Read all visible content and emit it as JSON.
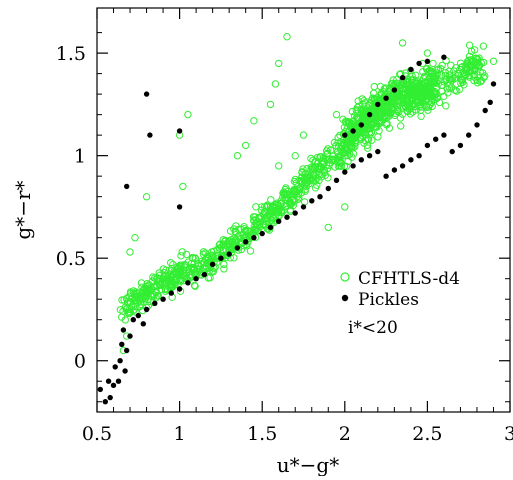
{
  "chart_data": {
    "type": "scatter",
    "xlabel": "u*−g*",
    "ylabel": "g*−r*",
    "xlim": [
      0.5,
      3.0
    ],
    "ylim": [
      -0.25,
      1.72
    ],
    "x_ticks": [
      0.5,
      1,
      1.5,
      2,
      2.5,
      3
    ],
    "x_tick_labels": [
      "0.5",
      "1",
      "1.5",
      "2",
      "2.5",
      "3"
    ],
    "y_ticks": [
      0,
      0.5,
      1,
      1.5
    ],
    "y_tick_labels": [
      "0",
      "0.5",
      "1",
      "1.5"
    ],
    "annotation": "i*<20",
    "legend_position": "right-center",
    "series": [
      {
        "name": "CFHTLS-d4",
        "marker": "open-circle",
        "color": "#33ee33",
        "trend_points": [
          [
            0.66,
            0.24
          ],
          [
            0.75,
            0.3
          ],
          [
            0.9,
            0.38
          ],
          [
            1.0,
            0.43
          ],
          [
            1.1,
            0.45
          ],
          [
            1.2,
            0.48
          ],
          [
            1.3,
            0.55
          ],
          [
            1.4,
            0.62
          ],
          [
            1.5,
            0.68
          ],
          [
            1.6,
            0.75
          ],
          [
            1.7,
            0.82
          ],
          [
            1.8,
            0.9
          ],
          [
            1.9,
            0.98
          ],
          [
            2.0,
            1.06
          ],
          [
            2.1,
            1.15
          ],
          [
            2.2,
            1.22
          ],
          [
            2.3,
            1.27
          ],
          [
            2.4,
            1.3
          ],
          [
            2.5,
            1.33
          ],
          [
            2.6,
            1.36
          ],
          [
            2.7,
            1.4
          ],
          [
            2.8,
            1.43
          ],
          [
            2.85,
            1.44
          ]
        ],
        "outliers": [
          [
            0.66,
            0.05
          ],
          [
            0.68,
            0.12
          ],
          [
            0.7,
            0.53
          ],
          [
            0.73,
            0.6
          ],
          [
            0.8,
            0.8
          ],
          [
            1.0,
            1.1
          ],
          [
            1.02,
            0.85
          ],
          [
            1.05,
            1.2
          ],
          [
            1.35,
            1.0
          ],
          [
            1.4,
            1.05
          ],
          [
            1.45,
            1.17
          ],
          [
            1.55,
            1.25
          ],
          [
            1.58,
            1.35
          ],
          [
            1.6,
            1.45
          ],
          [
            1.65,
            1.58
          ],
          [
            1.6,
            0.95
          ],
          [
            1.7,
            1.0
          ],
          [
            1.75,
            1.1
          ],
          [
            1.95,
            1.2
          ],
          [
            1.9,
            0.65
          ],
          [
            2.0,
            0.75
          ],
          [
            2.35,
            1.55
          ],
          [
            2.5,
            1.5
          ],
          [
            2.8,
            1.47
          ],
          [
            2.9,
            1.46
          ]
        ]
      },
      {
        "name": "Pickles",
        "marker": "filled-circle",
        "color": "#000000",
        "points": [
          [
            0.52,
            -0.14
          ],
          [
            0.55,
            -0.2
          ],
          [
            0.57,
            -0.1
          ],
          [
            0.58,
            -0.18
          ],
          [
            0.6,
            -0.12
          ],
          [
            0.61,
            -0.03
          ],
          [
            0.63,
            -0.1
          ],
          [
            0.64,
            0.0
          ],
          [
            0.65,
            0.08
          ],
          [
            0.66,
            0.15
          ],
          [
            0.67,
            -0.05
          ],
          [
            0.68,
            0.05
          ],
          [
            0.7,
            0.12
          ],
          [
            0.72,
            0.2
          ],
          [
            0.75,
            0.22
          ],
          [
            0.78,
            0.18
          ],
          [
            0.8,
            0.25
          ],
          [
            0.85,
            0.28
          ],
          [
            0.9,
            0.3
          ],
          [
            0.95,
            0.33
          ],
          [
            1.0,
            0.35
          ],
          [
            1.05,
            0.38
          ],
          [
            1.1,
            0.4
          ],
          [
            1.15,
            0.42
          ],
          [
            1.2,
            0.47
          ],
          [
            1.25,
            0.5
          ],
          [
            1.3,
            0.52
          ],
          [
            1.35,
            0.55
          ],
          [
            1.4,
            0.58
          ],
          [
            1.45,
            0.6
          ],
          [
            1.5,
            0.62
          ],
          [
            1.55,
            0.65
          ],
          [
            1.6,
            0.68
          ],
          [
            1.65,
            0.7
          ],
          [
            1.7,
            0.72
          ],
          [
            1.75,
            0.75
          ],
          [
            1.8,
            0.78
          ],
          [
            1.85,
            0.8
          ],
          [
            1.9,
            0.84
          ],
          [
            1.95,
            0.88
          ],
          [
            2.0,
            0.92
          ],
          [
            2.05,
            0.95
          ],
          [
            2.1,
            0.98
          ],
          [
            2.15,
            1.0
          ],
          [
            2.2,
            1.02
          ],
          [
            2.25,
            0.9
          ],
          [
            2.3,
            0.93
          ],
          [
            2.35,
            0.95
          ],
          [
            2.4,
            0.98
          ],
          [
            2.45,
            1.0
          ],
          [
            2.5,
            1.05
          ],
          [
            2.55,
            1.08
          ],
          [
            2.6,
            1.1
          ],
          [
            2.65,
            1.02
          ],
          [
            2.7,
            1.05
          ],
          [
            2.75,
            1.1
          ],
          [
            2.8,
            1.15
          ],
          [
            2.85,
            1.22
          ],
          [
            2.88,
            1.26
          ],
          [
            2.9,
            1.35
          ],
          [
            2.0,
            1.1
          ],
          [
            2.05,
            1.12
          ],
          [
            2.1,
            1.15
          ],
          [
            2.15,
            1.2
          ],
          [
            2.2,
            1.25
          ],
          [
            2.25,
            1.28
          ],
          [
            2.3,
            1.32
          ],
          [
            2.35,
            1.38
          ],
          [
            2.4,
            1.42
          ],
          [
            2.45,
            1.45
          ],
          [
            2.5,
            1.46
          ],
          [
            2.6,
            1.48
          ],
          [
            0.68,
            0.85
          ],
          [
            0.8,
            1.3
          ],
          [
            0.82,
            1.1
          ],
          [
            1.0,
            1.12
          ],
          [
            1.0,
            0.75
          ]
        ]
      }
    ]
  }
}
